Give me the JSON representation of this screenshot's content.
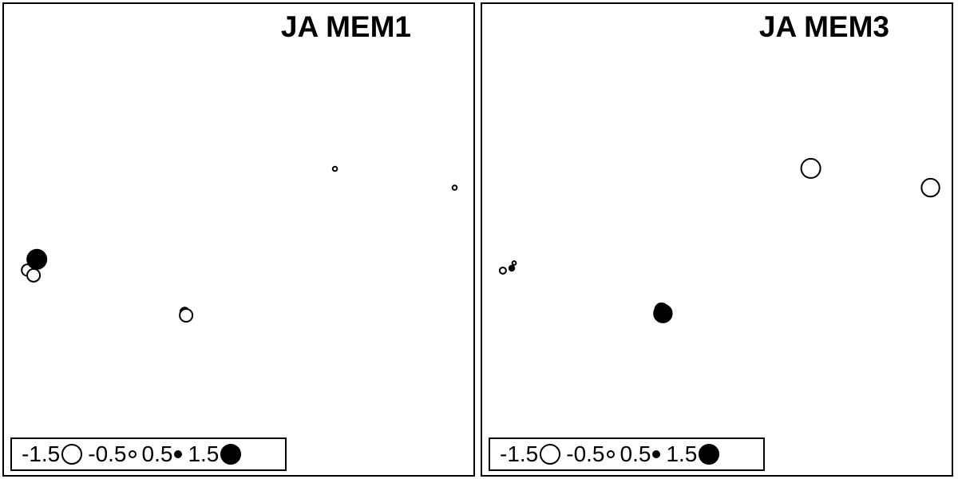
{
  "chart_data": [
    {
      "type": "scatter",
      "title": "JA MEM1",
      "xlim": [
        0,
        100
      ],
      "ylim": [
        0,
        100
      ],
      "legend": {
        "placement": "bottom-left",
        "entries": [
          {
            "label": "-1.5",
            "value": -1.5
          },
          {
            "label": "-0.5",
            "value": -0.5
          },
          {
            "label": "0.5",
            "value": 0.5
          },
          {
            "label": "1.5",
            "value": 1.5
          }
        ]
      },
      "points": [
        {
          "x": 5.0,
          "y": 43.5,
          "value": -0.9
        },
        {
          "x": 6.3,
          "y": 42.4,
          "value": -1.0
        },
        {
          "x": 6.8,
          "y": 45.0,
          "value": -0.8
        },
        {
          "x": 7.0,
          "y": 45.8,
          "value": 1.5
        },
        {
          "x": 38.5,
          "y": 34.6,
          "value": -0.7
        },
        {
          "x": 38.8,
          "y": 33.9,
          "value": -1.0
        },
        {
          "x": 70.5,
          "y": 65.0,
          "value": -0.35
        },
        {
          "x": 96.0,
          "y": 61.0,
          "value": -0.35
        }
      ]
    },
    {
      "type": "scatter",
      "title": "JA MEM3",
      "xlim": [
        0,
        100
      ],
      "ylim": [
        0,
        100
      ],
      "legend": {
        "placement": "bottom-left",
        "entries": [
          {
            "label": "-1.5",
            "value": -1.5
          },
          {
            "label": "-0.5",
            "value": -0.5
          },
          {
            "label": "0.5",
            "value": 0.5
          },
          {
            "label": "1.5",
            "value": 1.5
          }
        ]
      },
      "points": [
        {
          "x": 4.4,
          "y": 43.4,
          "value": -0.5
        },
        {
          "x": 6.3,
          "y": 43.9,
          "value": 0.4
        },
        {
          "x": 6.8,
          "y": 45.0,
          "value": -0.3
        },
        {
          "x": 38.2,
          "y": 35.1,
          "value": 1.0
        },
        {
          "x": 38.5,
          "y": 34.3,
          "value": 1.4
        },
        {
          "x": 70.0,
          "y": 65.1,
          "value": -1.5
        },
        {
          "x": 95.5,
          "y": 61.0,
          "value": -1.4
        }
      ]
    }
  ]
}
